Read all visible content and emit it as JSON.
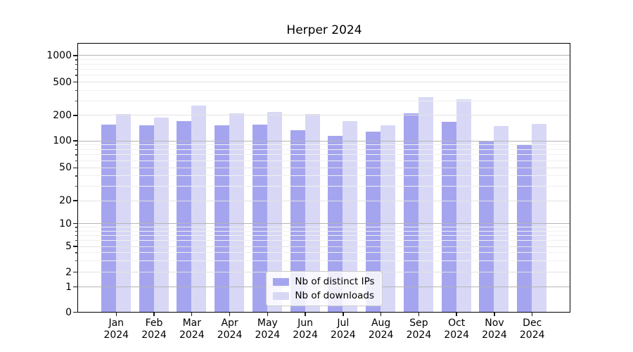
{
  "title": "Herper 2024",
  "legend": {
    "items": [
      {
        "label": "Nb of distinct IPs",
        "color": "#a5a5ef"
      },
      {
        "label": "Nb of downloads",
        "color": "#d8d8f6"
      }
    ]
  },
  "x_axis": {
    "months": [
      "Jan",
      "Feb",
      "Mar",
      "Apr",
      "May",
      "Jun",
      "Jul",
      "Aug",
      "Sep",
      "Oct",
      "Nov",
      "Dec"
    ],
    "year": "2024"
  },
  "y_axis": {
    "tick_labels": [
      "0",
      "1",
      "2",
      "5",
      "10",
      "20",
      "50",
      "100",
      "200",
      "500",
      "1000"
    ],
    "tick_values": [
      0,
      1,
      2,
      5,
      10,
      20,
      50,
      100,
      200,
      500,
      1000
    ]
  },
  "chart_data": {
    "type": "bar",
    "title": "Herper 2024",
    "categories": [
      "Jan 2024",
      "Feb 2024",
      "Mar 2024",
      "Apr 2024",
      "May 2024",
      "Jun 2024",
      "Jul 2024",
      "Aug 2024",
      "Sep 2024",
      "Oct 2024",
      "Nov 2024",
      "Dec 2024"
    ],
    "series": [
      {
        "name": "Nb of distinct IPs",
        "color": "#a5a5ef",
        "values": [
          153,
          150,
          169,
          151,
          155,
          131,
          114,
          126,
          208,
          166,
          99,
          90
        ]
      },
      {
        "name": "Nb of downloads",
        "color": "#d8d8f6",
        "values": [
          207,
          188,
          259,
          208,
          220,
          206,
          171,
          152,
          325,
          310,
          147,
          158
        ]
      }
    ],
    "xlabel": "",
    "ylabel": "",
    "yscale": "symlog",
    "yticks": [
      0,
      1,
      2,
      5,
      10,
      20,
      50,
      100,
      200,
      500,
      1000
    ],
    "ylim": [
      0,
      1300
    ],
    "grid": "both",
    "grid_above_bars": true,
    "legend_position": "lower center"
  }
}
